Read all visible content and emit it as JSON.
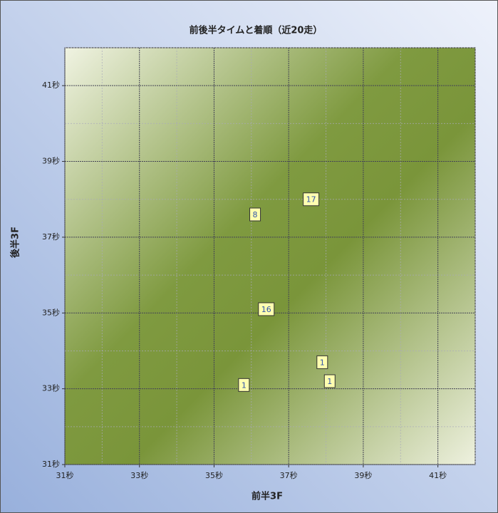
{
  "chart_data": {
    "type": "scatter",
    "title": "前後半タイムと着順（近20走）",
    "x_label": "前半3F",
    "y_label": "後半3F",
    "xlim": [
      31,
      42
    ],
    "ylim": [
      31,
      42
    ],
    "xticks": [
      {
        "value": 31,
        "label": "31秒"
      },
      {
        "value": 33,
        "label": "33秒"
      },
      {
        "value": 35,
        "label": "35秒"
      },
      {
        "value": 37,
        "label": "37秒"
      },
      {
        "value": 39,
        "label": "39秒"
      },
      {
        "value": 41,
        "label": "41秒"
      }
    ],
    "yticks": [
      {
        "value": 31,
        "label": "31秒"
      },
      {
        "value": 33,
        "label": "33秒"
      },
      {
        "value": 35,
        "label": "35秒"
      },
      {
        "value": 37,
        "label": "37秒"
      },
      {
        "value": 39,
        "label": "39秒"
      },
      {
        "value": 41,
        "label": "41秒"
      }
    ],
    "x_minor_ticks": [
      32,
      34,
      36,
      38,
      40,
      42
    ],
    "y_minor_ticks": [
      32,
      34,
      36,
      38,
      40,
      42
    ],
    "grid": true,
    "color": "#ffffb0",
    "x": [
      35.8,
      36.1,
      37.6,
      36.4,
      37.9,
      38.1
    ],
    "values": [
      33.1,
      37.6,
      38.0,
      35.1,
      33.7,
      33.2
    ],
    "finish": [
      1,
      8,
      17,
      16,
      1,
      1
    ]
  }
}
